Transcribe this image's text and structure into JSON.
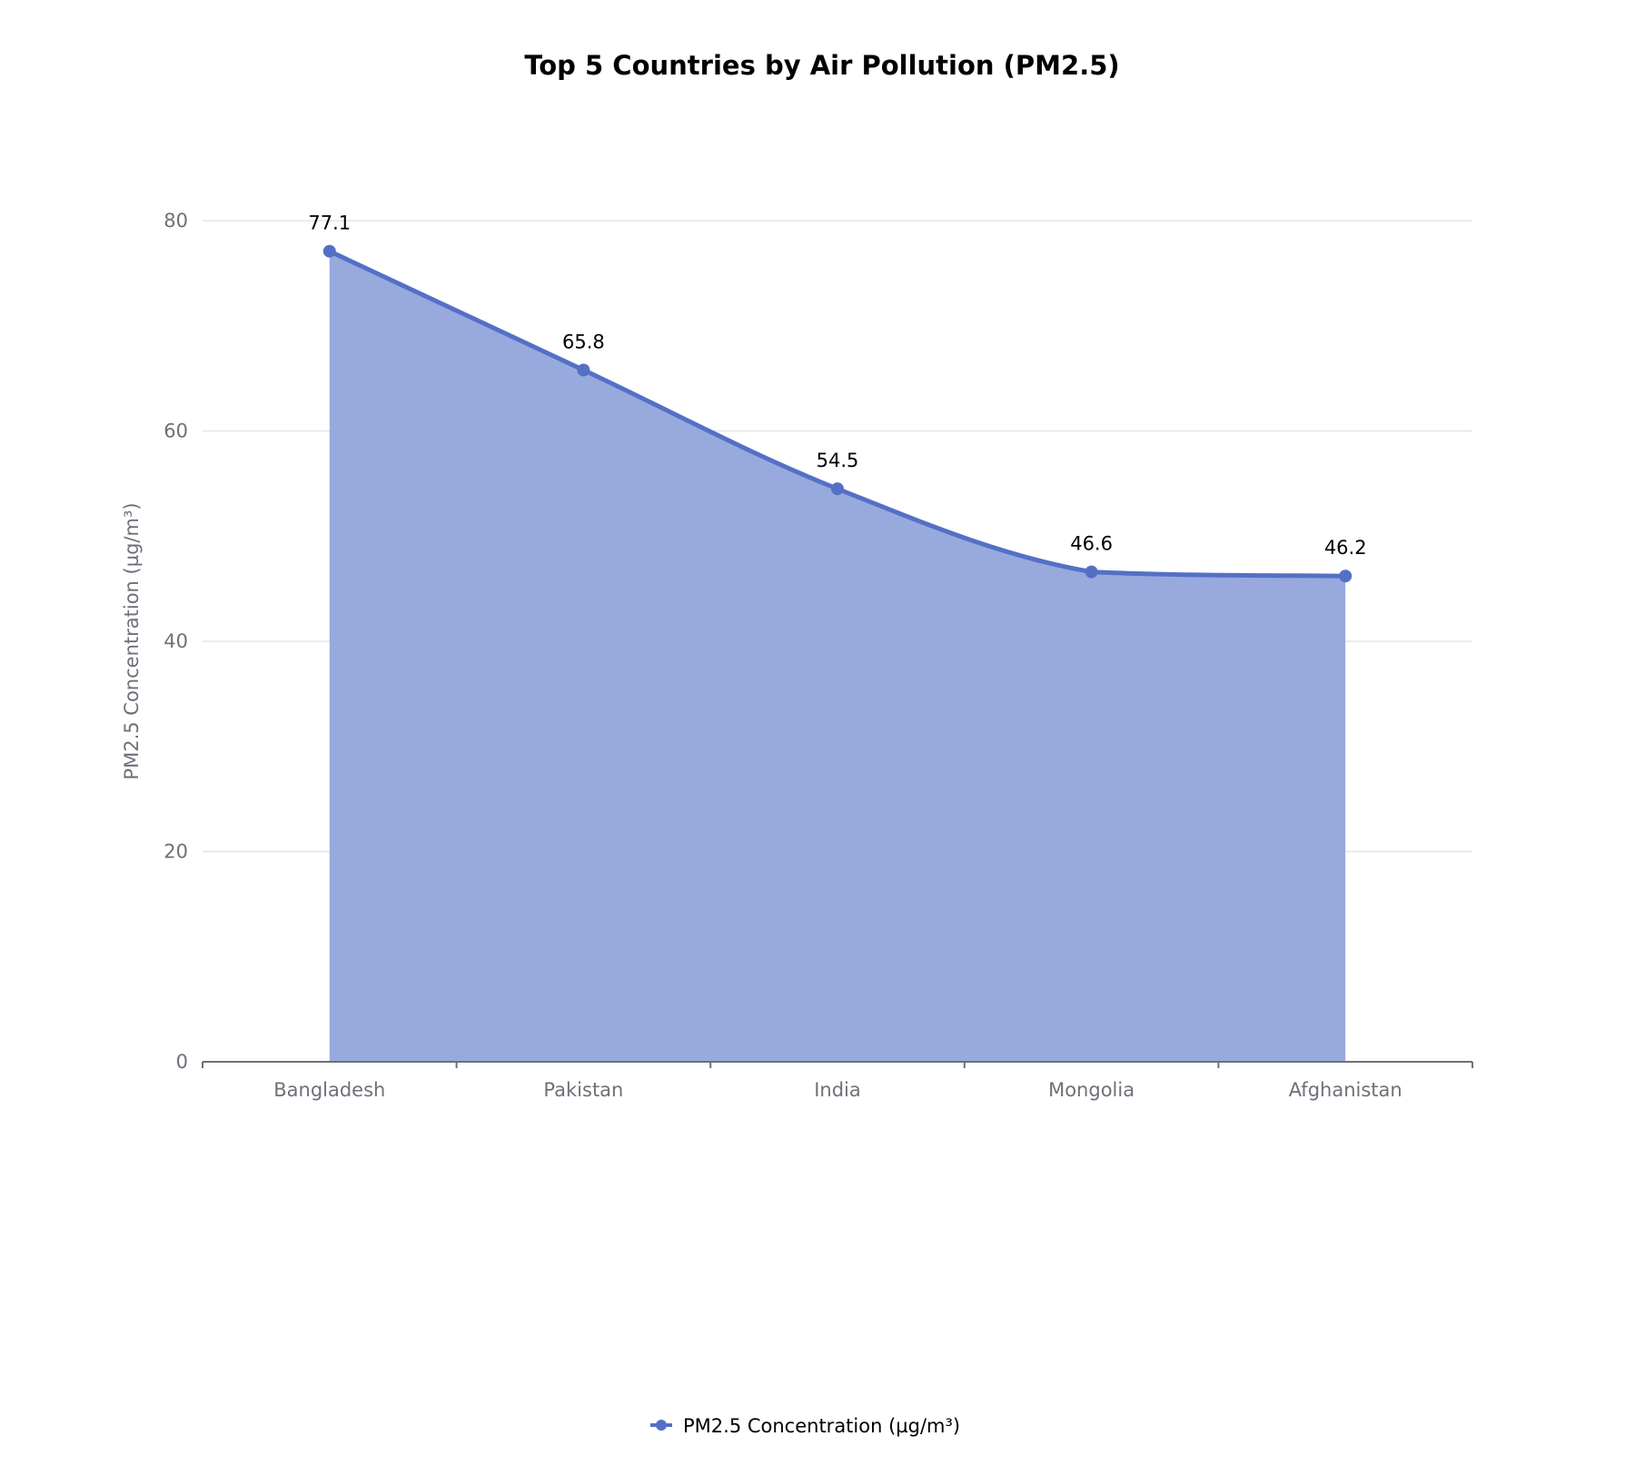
{
  "chart_data": {
    "type": "area",
    "title": "Top 5 Countries by Air Pollution (PM2.5)",
    "xlabel": "",
    "ylabel": "PM2.5 Concentration (µg/m³)",
    "categories": [
      "Bangladesh",
      "Pakistan",
      "India",
      "Mongolia",
      "Afghanistan"
    ],
    "series": [
      {
        "name": "PM2.5 Concentration (µg/m³)",
        "values": [
          77.1,
          65.8,
          54.5,
          46.6,
          46.2
        ],
        "color": "#5470c6",
        "smooth": true,
        "show_labels": true
      }
    ],
    "ylim": [
      0,
      80
    ],
    "yticks": [
      0,
      20,
      40,
      60,
      80
    ],
    "grid": true,
    "legend_position": "bottom"
  },
  "colors": {
    "line": "#5470c6",
    "area": "#98a9dd",
    "grid": "#e0e6f1",
    "axis": "#6e7079"
  }
}
